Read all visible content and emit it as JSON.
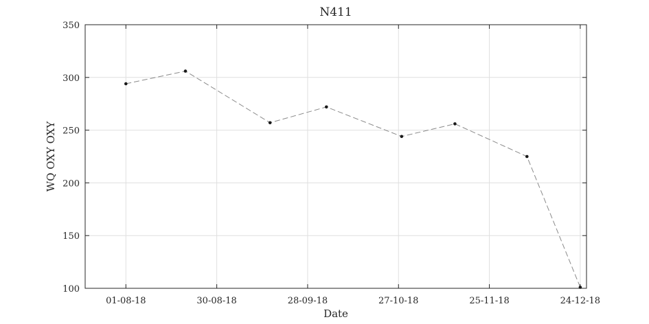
{
  "chart_data": {
    "type": "line",
    "title": "N411",
    "xlabel": "Date",
    "ylabel": "WQ OXY OXY",
    "x": [
      "2018-08-01",
      "2018-08-20",
      "2018-09-16",
      "2018-10-04",
      "2018-10-28",
      "2018-11-14",
      "2018-12-07",
      "2018-12-24"
    ],
    "series": [
      {
        "values": [
          294,
          306,
          257,
          272,
          244,
          256,
          225,
          101
        ]
      }
    ],
    "xlim": [
      "2018-07-19",
      "2018-12-26"
    ],
    "ylim": [
      100,
      350
    ],
    "x_tick_labels": [
      "01-08-18",
      "30-08-18",
      "28-09-18",
      "27-10-18",
      "25-11-18",
      "24-12-18"
    ],
    "y_tick_values": [
      100,
      150,
      200,
      250,
      300,
      350
    ],
    "grid": true,
    "series_color": "#8a8a8a",
    "marker_color": "#1a1a1a"
  }
}
